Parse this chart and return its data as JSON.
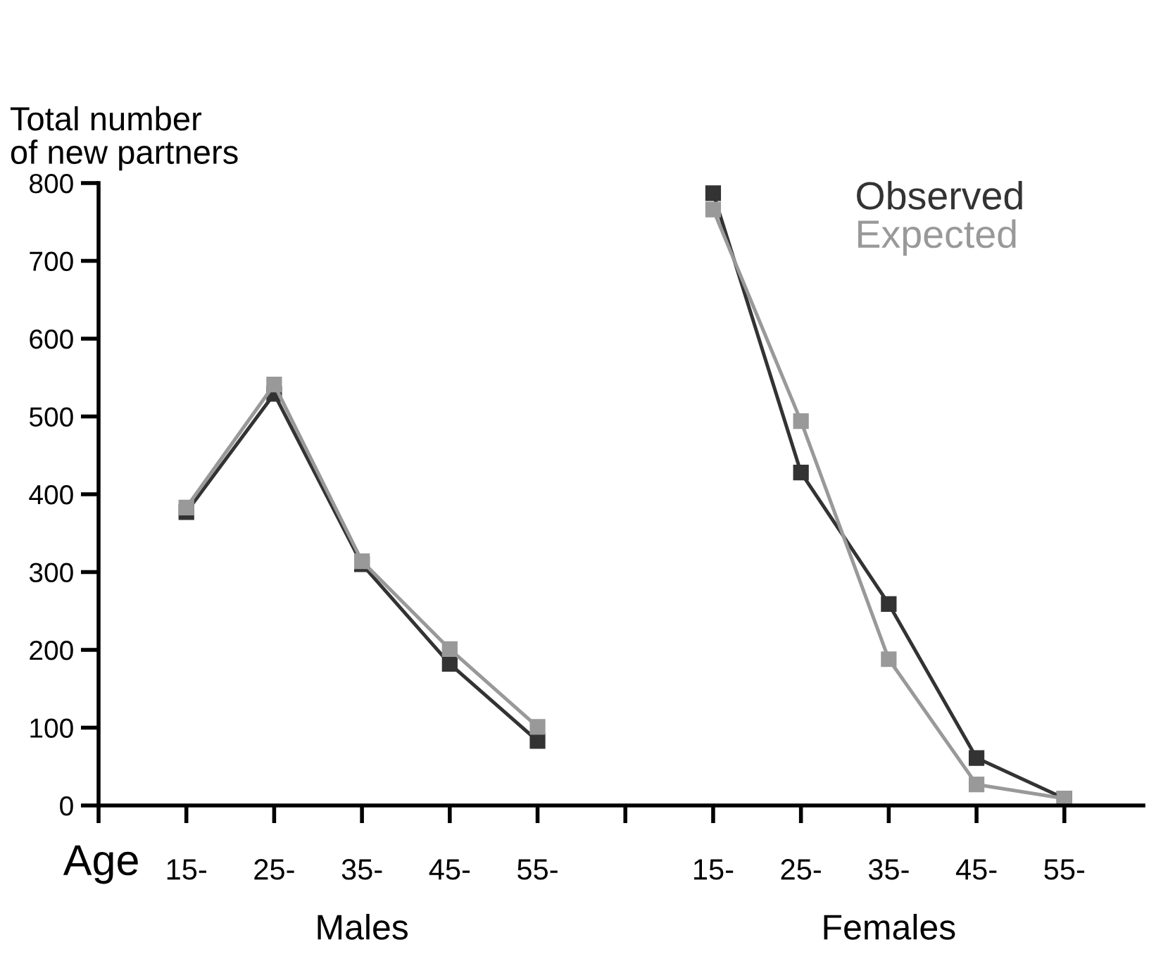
{
  "chart_data": {
    "type": "line",
    "ylabel": "Total number\nof new partners",
    "categories": [
      null,
      "15-",
      "25-",
      "35-",
      "45-",
      "55-",
      null,
      "15-",
      "25-",
      "35-",
      "45-",
      "55-"
    ],
    "series": [
      {
        "name": "Observed",
        "color": "#333333",
        "values": [
          null,
          377,
          529,
          310,
          182,
          83,
          null,
          787,
          428,
          259,
          61,
          9
        ]
      },
      {
        "name": "Expected",
        "color": "#999999",
        "values": [
          null,
          383,
          541,
          314,
          201,
          101,
          null,
          766,
          494,
          188,
          27,
          9
        ]
      }
    ],
    "ylim": [
      0,
      800
    ],
    "yticks": [
      0,
      100,
      200,
      300,
      400,
      500,
      600,
      700,
      800
    ],
    "marker": "square",
    "line_style": "solid",
    "legend": "top right",
    "grid": false,
    "annotations": [
      "Age",
      "Males",
      "Females"
    ]
  }
}
